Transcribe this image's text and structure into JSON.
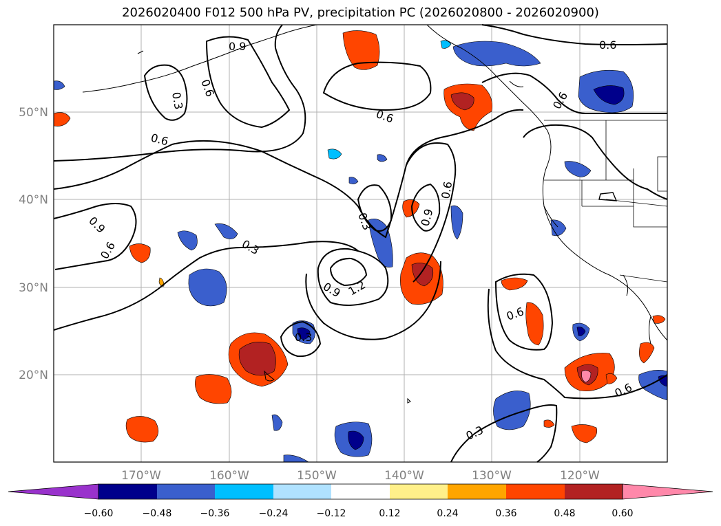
{
  "title": "2026020400 F012 500 hPa PV, precipitation PC (2026020800 - 2026020900)",
  "map": {
    "lon_ticks": [
      "170°W",
      "160°W",
      "150°W",
      "140°W",
      "130°W",
      "120°W"
    ],
    "lat_ticks": [
      "50°N",
      "40°N",
      "30°N",
      "20°N"
    ],
    "contour_labels": [
      "0.9",
      "0.3",
      "0.6",
      "0.6",
      "0.6",
      "0.6",
      "0.9",
      "0.6",
      "0.3",
      "0.3",
      "0.9",
      "1.2",
      "0.9",
      "0.6",
      "0.6",
      "0.3",
      "0.3",
      "0.6",
      "0.6"
    ]
  },
  "colorbar": {
    "ticks": [
      "−0.60",
      "−0.48",
      "−0.36",
      "−0.24",
      "−0.12",
      "0.12",
      "0.24",
      "0.36",
      "0.48",
      "0.60"
    ],
    "colors": [
      "#9932cc",
      "#00008b",
      "#3a5fcd",
      "#00bfff",
      "#b0e2ff",
      "#ffffff",
      "#fff08a",
      "#ffa500",
      "#ff4500",
      "#b22222",
      "#ff88aa",
      "#ff88aa"
    ]
  }
}
